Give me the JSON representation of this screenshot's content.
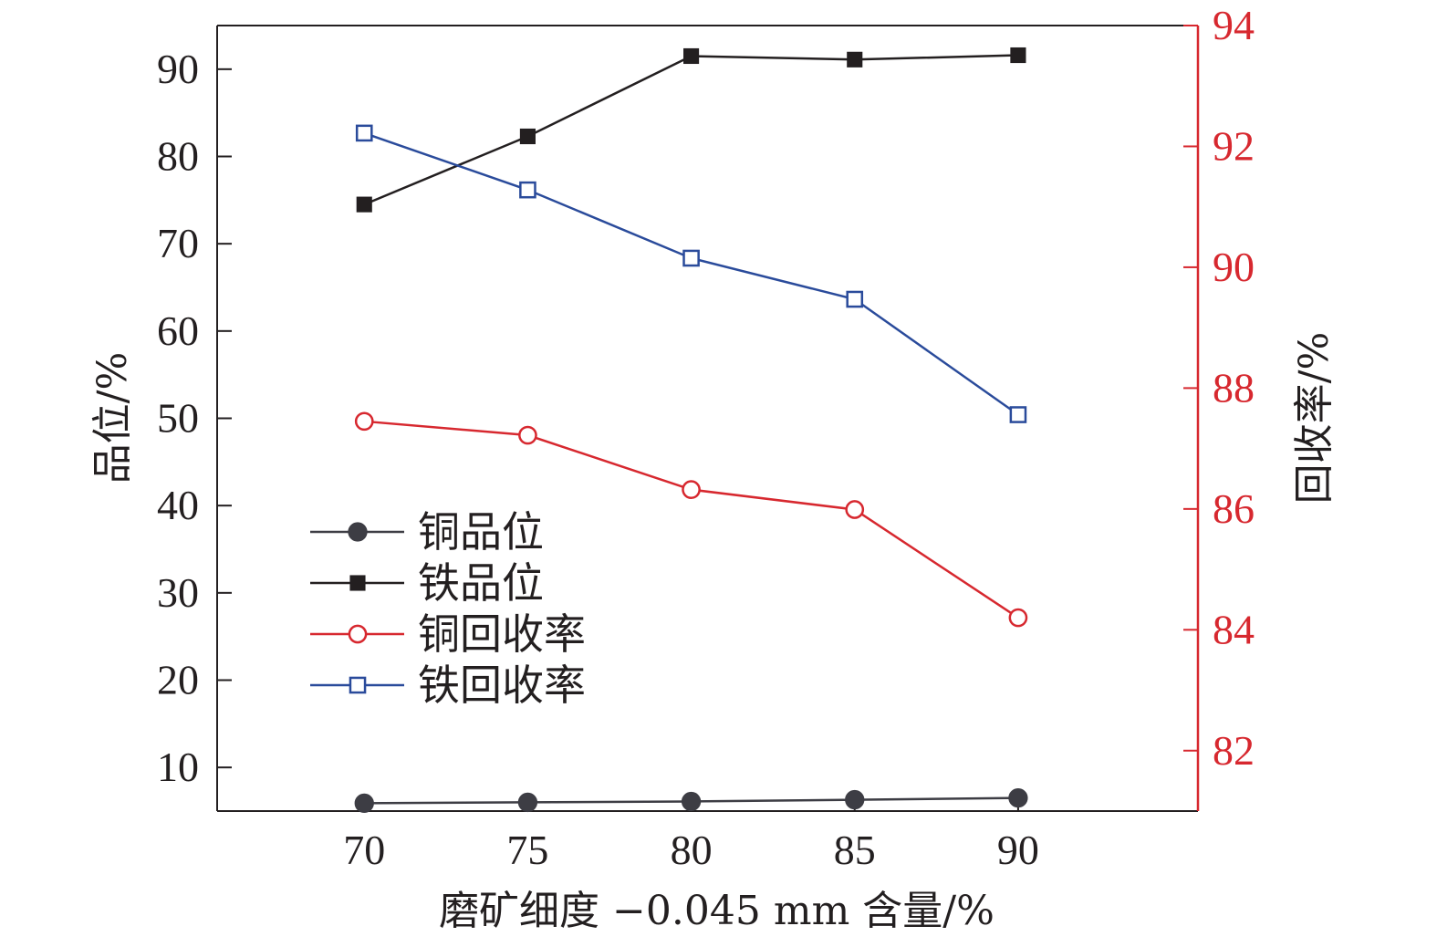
{
  "chart_data": {
    "type": "line",
    "x_axis": {
      "label": "磨矿细度 −0.045 mm 含量/%",
      "ticks": [
        70,
        75,
        80,
        85,
        90
      ],
      "range": [
        65.5,
        95.5
      ]
    },
    "y_axis_left": {
      "label": "品位/%",
      "ticks": [
        10,
        20,
        30,
        40,
        50,
        60,
        70,
        80,
        90
      ],
      "range": [
        5,
        95
      ],
      "color": "#231f20"
    },
    "y_axis_right": {
      "label": "回收率/%",
      "ticks": [
        82,
        84,
        86,
        88,
        90,
        92,
        94
      ],
      "range": [
        81,
        94
      ],
      "color": "#d7282f"
    },
    "x": [
      70,
      75,
      80,
      85,
      90
    ],
    "series": [
      {
        "name": "铜品位",
        "axis": "left",
        "color": "#3d3d44",
        "marker": "circle-filled",
        "values": [
          5.9,
          6.0,
          6.1,
          6.3,
          6.5
        ]
      },
      {
        "name": "铁品位",
        "axis": "left",
        "color": "#231f20",
        "marker": "square-filled",
        "values": [
          74.5,
          82.3,
          91.5,
          91.1,
          91.6
        ]
      },
      {
        "name": "铜回收率",
        "axis": "right",
        "color": "#d7282f",
        "marker": "circle-open",
        "values": [
          87.45,
          87.22,
          86.32,
          85.99,
          84.2
        ]
      },
      {
        "name": "铁回收率",
        "axis": "right",
        "color": "#2a4b9b",
        "marker": "square-open",
        "values": [
          92.22,
          91.28,
          90.15,
          89.47,
          87.56
        ]
      }
    ],
    "legend": {
      "placement": "center-left",
      "entries": [
        "铜品位",
        "铁品位",
        "铜回收率",
        "铁回收率"
      ]
    },
    "grid": false
  }
}
